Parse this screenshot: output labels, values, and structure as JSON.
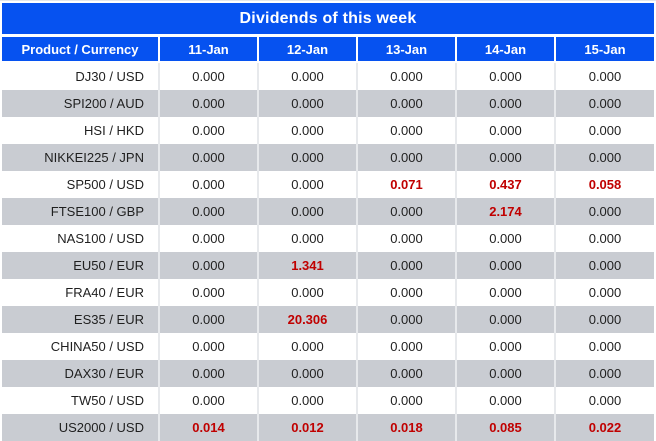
{
  "title": "Dividends of this week",
  "columns": [
    "Product / Currency",
    "11-Jan",
    "12-Jan",
    "13-Jan",
    "14-Jan",
    "15-Jan"
  ],
  "colors": {
    "header_blue": "#0652f0",
    "stripe_gray": "#c9ccd2",
    "highlight_red": "#c00000",
    "text_dark": "#1f1f1f",
    "header_text": "#ffffff"
  },
  "chart_data": {
    "type": "table",
    "title": "Dividends of this week",
    "columns": [
      "Product / Currency",
      "11-Jan",
      "12-Jan",
      "13-Jan",
      "14-Jan",
      "15-Jan"
    ],
    "rows": [
      {
        "product": "DJ30 / USD",
        "values": [
          "0.000",
          "0.000",
          "0.000",
          "0.000",
          "0.000"
        ],
        "red": [
          false,
          false,
          false,
          false,
          false
        ]
      },
      {
        "product": "SPI200 / AUD",
        "values": [
          "0.000",
          "0.000",
          "0.000",
          "0.000",
          "0.000"
        ],
        "red": [
          false,
          false,
          false,
          false,
          false
        ]
      },
      {
        "product": "HSI / HKD",
        "values": [
          "0.000",
          "0.000",
          "0.000",
          "0.000",
          "0.000"
        ],
        "red": [
          false,
          false,
          false,
          false,
          false
        ]
      },
      {
        "product": "NIKKEI225 / JPN",
        "values": [
          "0.000",
          "0.000",
          "0.000",
          "0.000",
          "0.000"
        ],
        "red": [
          false,
          false,
          false,
          false,
          false
        ]
      },
      {
        "product": "SP500 / USD",
        "values": [
          "0.000",
          "0.000",
          "0.071",
          "0.437",
          "0.058"
        ],
        "red": [
          false,
          false,
          true,
          true,
          true
        ]
      },
      {
        "product": "FTSE100 / GBP",
        "values": [
          "0.000",
          "0.000",
          "0.000",
          "2.174",
          "0.000"
        ],
        "red": [
          false,
          false,
          false,
          true,
          false
        ]
      },
      {
        "product": "NAS100 / USD",
        "values": [
          "0.000",
          "0.000",
          "0.000",
          "0.000",
          "0.000"
        ],
        "red": [
          false,
          false,
          false,
          false,
          false
        ]
      },
      {
        "product": "EU50 / EUR",
        "values": [
          "0.000",
          "1.341",
          "0.000",
          "0.000",
          "0.000"
        ],
        "red": [
          false,
          true,
          false,
          false,
          false
        ]
      },
      {
        "product": "FRA40 / EUR",
        "values": [
          "0.000",
          "0.000",
          "0.000",
          "0.000",
          "0.000"
        ],
        "red": [
          false,
          false,
          false,
          false,
          false
        ]
      },
      {
        "product": "ES35 / EUR",
        "values": [
          "0.000",
          "20.306",
          "0.000",
          "0.000",
          "0.000"
        ],
        "red": [
          false,
          true,
          false,
          false,
          false
        ]
      },
      {
        "product": "CHINA50 / USD",
        "values": [
          "0.000",
          "0.000",
          "0.000",
          "0.000",
          "0.000"
        ],
        "red": [
          false,
          false,
          false,
          false,
          false
        ]
      },
      {
        "product": "DAX30 / EUR",
        "values": [
          "0.000",
          "0.000",
          "0.000",
          "0.000",
          "0.000"
        ],
        "red": [
          false,
          false,
          false,
          false,
          false
        ]
      },
      {
        "product": "TW50 / USD",
        "values": [
          "0.000",
          "0.000",
          "0.000",
          "0.000",
          "0.000"
        ],
        "red": [
          false,
          false,
          false,
          false,
          false
        ]
      },
      {
        "product": "US2000 / USD",
        "values": [
          "0.014",
          "0.012",
          "0.018",
          "0.085",
          "0.022"
        ],
        "red": [
          true,
          true,
          true,
          true,
          true
        ]
      }
    ]
  }
}
